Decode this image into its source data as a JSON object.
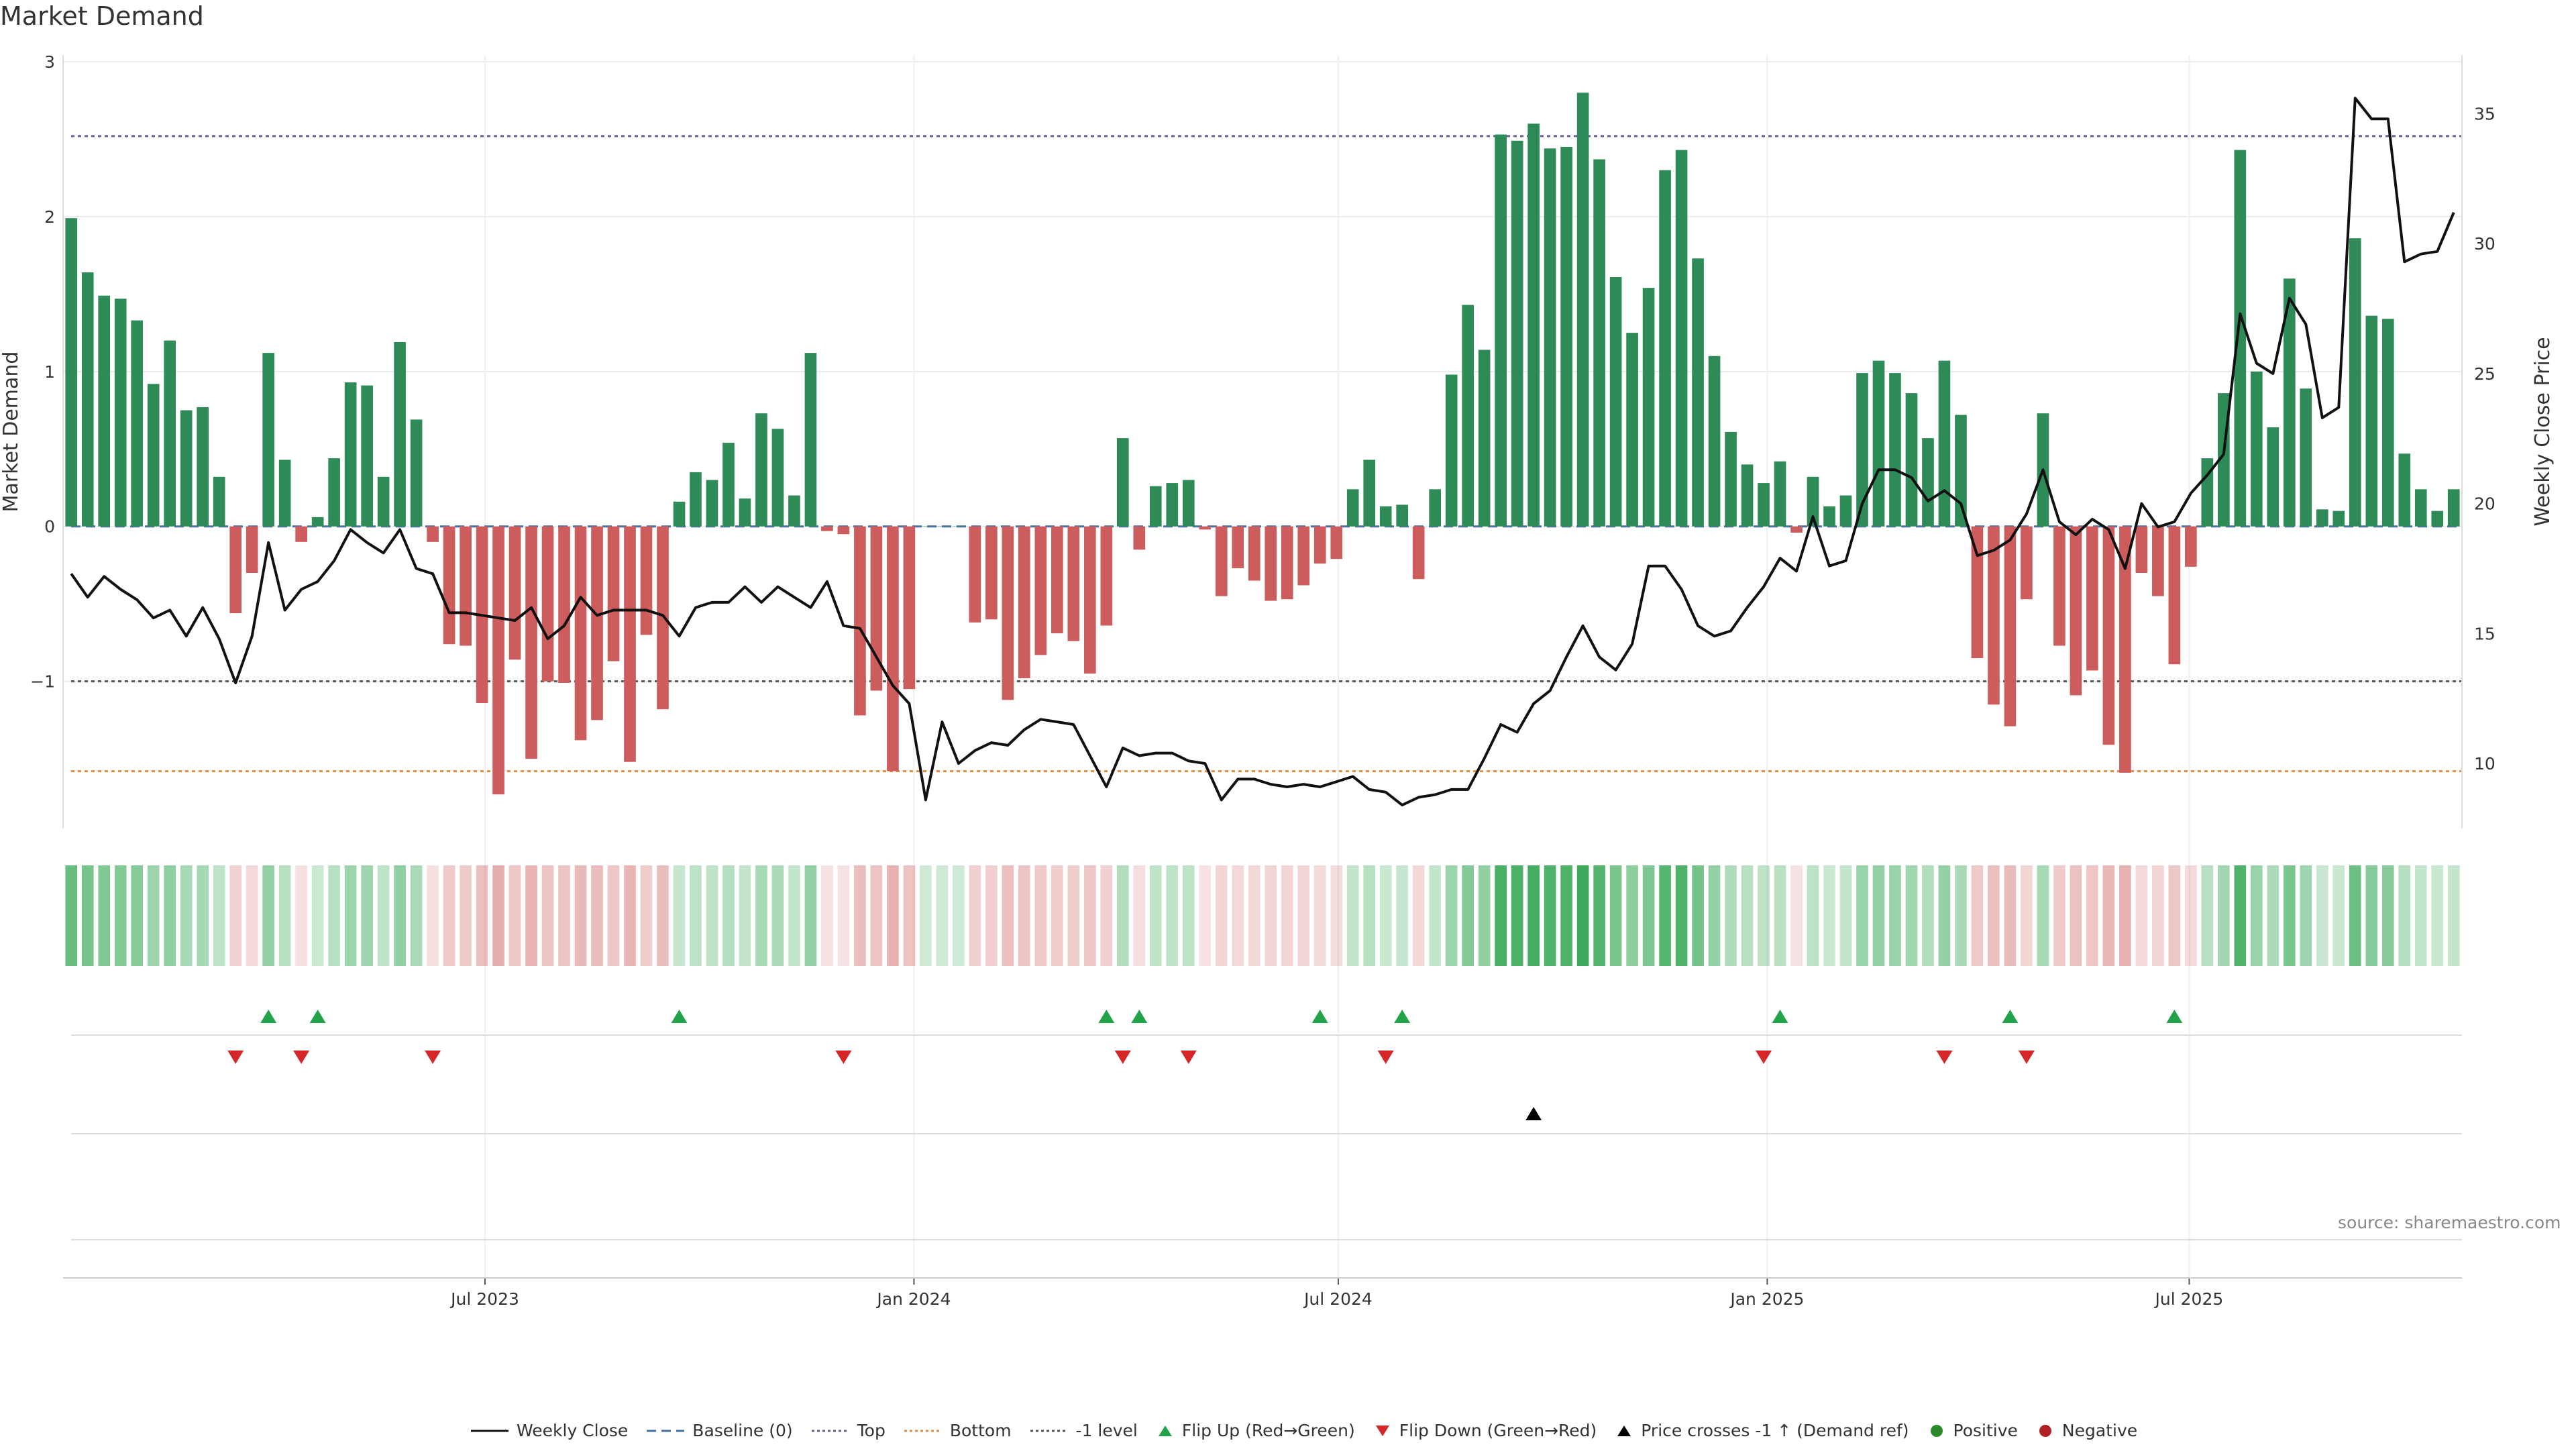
{
  "title": "Market Demand",
  "source": "source: sharemaestro.com",
  "colors": {
    "positive_bar": "#2e8b57",
    "negative_bar": "#cd5c5c",
    "price_line": "#111111",
    "top_line": "#6a5a9a",
    "bottom_line": "#e08a3c",
    "minus1_line": "#555555",
    "baseline": "#4a6fa5",
    "flip_up": "#22a34a",
    "flip_down": "#d62728",
    "cross": "#000000",
    "positive_dot": "#2a8a2a",
    "negative_dot": "#b22222"
  },
  "chart_data": {
    "type": "bar",
    "title": "Market Demand",
    "ylabel_left": "Market Demand",
    "ylabel_right": "Weekly Close Price",
    "ylim_left": [
      -1.95,
      3.0
    ],
    "ylim_right": [
      7.5,
      37
    ],
    "yticks_left": [
      "3",
      "2",
      "1",
      "0",
      "−1"
    ],
    "yticks_left_values": [
      3,
      2,
      1,
      0,
      -1
    ],
    "yticks_right": [
      "35",
      "30",
      "25",
      "20",
      "15",
      "10"
    ],
    "yticks_right_values": [
      35,
      30,
      25,
      20,
      15,
      10
    ],
    "x_start": "2023-01-01",
    "x_end": "2025-10-26",
    "xticks": [
      {
        "date": "2023-07-01",
        "label": "Jul 2023"
      },
      {
        "date": "2024-01-01",
        "label": "Jan 2024"
      },
      {
        "date": "2024-07-01",
        "label": "Jul 2024"
      },
      {
        "date": "2025-01-01",
        "label": "Jan 2025"
      },
      {
        "date": "2025-07-01",
        "label": "Jul 2025"
      }
    ],
    "reference_lines": {
      "top": 2.52,
      "bottom": -1.58,
      "minus1": -1.0,
      "baseline": 0
    },
    "series": [
      {
        "name": "Market Demand",
        "type": "bar",
        "values": [
          1.99,
          1.64,
          1.49,
          1.47,
          1.33,
          0.92,
          1.2,
          0.75,
          0.77,
          0.32,
          -0.56,
          -0.3,
          1.12,
          0.43,
          -0.1,
          0.06,
          0.44,
          0.93,
          0.91,
          0.32,
          1.19,
          0.69,
          -0.1,
          -0.76,
          -0.77,
          -1.14,
          -1.73,
          -0.86,
          -1.5,
          -1.0,
          -1.01,
          -1.38,
          -1.25,
          -0.87,
          -1.52,
          -0.7,
          -1.18,
          0.16,
          0.35,
          0.3,
          0.54,
          0.18,
          0.73,
          0.63,
          0.2,
          1.12,
          -0.03,
          -0.05,
          -1.22,
          -1.06,
          -1.58,
          -1.05,
          0.0,
          0.0,
          0.0,
          -0.62,
          -0.6,
          -1.12,
          -0.98,
          -0.83,
          -0.69,
          -0.74,
          -0.95,
          -0.64,
          0.57,
          -0.15,
          0.26,
          0.28,
          0.3,
          -0.02,
          -0.45,
          -0.27,
          -0.35,
          -0.48,
          -0.47,
          -0.38,
          -0.24,
          -0.21,
          0.24,
          0.43,
          0.13,
          0.14,
          -0.34,
          0.24,
          0.98,
          1.43,
          1.14,
          2.53,
          2.49,
          2.6,
          2.44,
          2.45,
          2.8,
          2.37,
          1.61,
          1.25,
          1.54,
          2.3,
          2.43,
          1.73,
          1.1,
          0.61,
          0.4,
          0.28,
          0.42,
          -0.04,
          0.32,
          0.13,
          0.2,
          0.99,
          1.07,
          0.99,
          0.86,
          0.57,
          1.07,
          0.72,
          -0.85,
          -1.15,
          -1.29,
          -0.47,
          0.73,
          -0.77,
          -1.09,
          -0.93,
          -1.41,
          -1.59,
          -0.3,
          -0.45,
          -0.89,
          -0.26,
          0.44,
          0.86,
          2.43,
          1.0,
          0.64,
          1.6,
          0.89,
          0.11,
          0.1,
          1.86,
          1.36,
          1.34,
          0.47,
          0.24,
          0.1,
          0.24
        ]
      },
      {
        "name": "Weekly Close",
        "type": "line",
        "values": [
          17.3,
          16.4,
          17.2,
          16.7,
          16.3,
          15.6,
          15.9,
          14.9,
          16.0,
          14.8,
          13.1,
          14.9,
          18.5,
          15.9,
          16.7,
          17.0,
          17.8,
          19.0,
          18.5,
          18.1,
          19.0,
          17.5,
          17.3,
          15.8,
          15.8,
          15.7,
          15.6,
          15.5,
          16.0,
          14.8,
          15.3,
          16.4,
          15.7,
          15.9,
          15.9,
          15.9,
          15.7,
          14.9,
          16.0,
          16.2,
          16.2,
          16.8,
          16.2,
          16.8,
          16.4,
          16.0,
          17.0,
          15.3,
          15.2,
          14.1,
          13.0,
          12.3,
          8.6,
          11.6,
          10.0,
          10.5,
          10.8,
          10.7,
          11.3,
          11.7,
          11.6,
          11.5,
          10.3,
          9.1,
          10.6,
          10.3,
          10.4,
          10.4,
          10.1,
          10.0,
          8.6,
          9.4,
          9.4,
          9.2,
          9.1,
          9.2,
          9.1,
          9.3,
          9.5,
          9.0,
          8.9,
          8.4,
          8.7,
          8.8,
          9.0,
          9.0,
          10.2,
          11.5,
          11.2,
          12.3,
          12.8,
          14.1,
          15.3,
          14.1,
          13.6,
          14.6,
          17.6,
          17.6,
          16.7,
          15.3,
          14.9,
          15.1,
          16.0,
          16.8,
          17.9,
          17.4,
          19.5,
          17.6,
          17.8,
          20.0,
          21.3,
          21.3,
          21.0,
          20.1,
          20.5,
          20.0,
          18.0,
          18.2,
          18.6,
          19.6,
          21.3,
          19.3,
          18.8,
          19.4,
          19.0,
          17.5,
          20.0,
          19.1,
          19.3,
          20.4,
          21.1,
          21.9,
          27.3,
          25.4,
          25.0,
          27.9,
          26.9,
          23.3,
          23.7,
          35.6,
          34.8,
          34.8,
          29.3,
          29.6,
          29.7,
          31.2
        ]
      }
    ],
    "flip_up_weeks": [
      12,
      15,
      37,
      63,
      65,
      76,
      81,
      104,
      118,
      128
    ],
    "flip_down_weeks": [
      10,
      14,
      22,
      47,
      64,
      68,
      80,
      103,
      114,
      119
    ],
    "price_cross_weeks": [
      89
    ]
  },
  "legend": [
    {
      "key": "weekly_close",
      "label": "Weekly Close"
    },
    {
      "key": "baseline",
      "label": "Baseline (0)"
    },
    {
      "key": "top",
      "label": "Top"
    },
    {
      "key": "bottom",
      "label": "Bottom"
    },
    {
      "key": "minus1",
      "label": "-1 level"
    },
    {
      "key": "flip_up",
      "label": "Flip Up (Red→Green)"
    },
    {
      "key": "flip_down",
      "label": "Flip Down (Green→Red)"
    },
    {
      "key": "cross",
      "label": "Price crosses -1 ↑ (Demand ref)"
    },
    {
      "key": "positive",
      "label": "Positive"
    },
    {
      "key": "negative",
      "label": "Negative"
    }
  ]
}
